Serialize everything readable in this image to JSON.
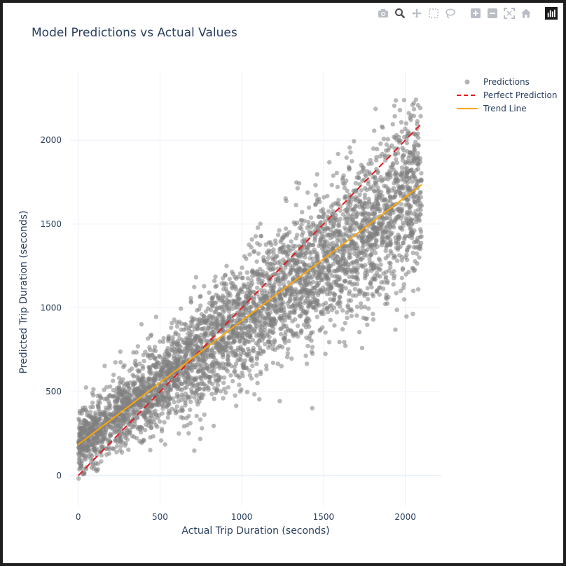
{
  "modebar": {
    "icons": [
      "camera-icon",
      "zoom-icon",
      "pan-icon",
      "box-select-icon",
      "lasso-icon",
      "zoom-in-icon",
      "zoom-out-icon",
      "autoscale-icon",
      "home-icon",
      "plotly-logo-icon"
    ]
  },
  "chart_data": {
    "type": "scatter",
    "title": "Model Predictions vs Actual Values",
    "xlabel": "Actual Trip Duration (seconds)",
    "ylabel": "Predicted Trip Duration (seconds)",
    "xlim": [
      -50,
      2220
    ],
    "ylim": [
      -180,
      2410
    ],
    "x_ticks": [
      "0",
      "500",
      "1000",
      "1500",
      "2000"
    ],
    "y_ticks": [
      "0",
      "500",
      "1000",
      "1500",
      "2000"
    ],
    "grid": true,
    "legend_position": "top-right",
    "series": [
      {
        "name": "Predictions",
        "kind": "markers",
        "color": "#808080",
        "x_range": [
          0,
          2100
        ],
        "trend": {
          "slope": 0.73,
          "intercept": 185
        },
        "spread_sd": 260
      },
      {
        "name": "Perfect Prediction",
        "kind": "dashed-line",
        "color": "#e31a1c",
        "x": [
          0,
          2100
        ],
        "y": [
          0,
          2100
        ]
      },
      {
        "name": "Trend Line",
        "kind": "line",
        "color": "#ffa500",
        "x": [
          0,
          2100
        ],
        "y": [
          185,
          1735
        ]
      }
    ]
  }
}
